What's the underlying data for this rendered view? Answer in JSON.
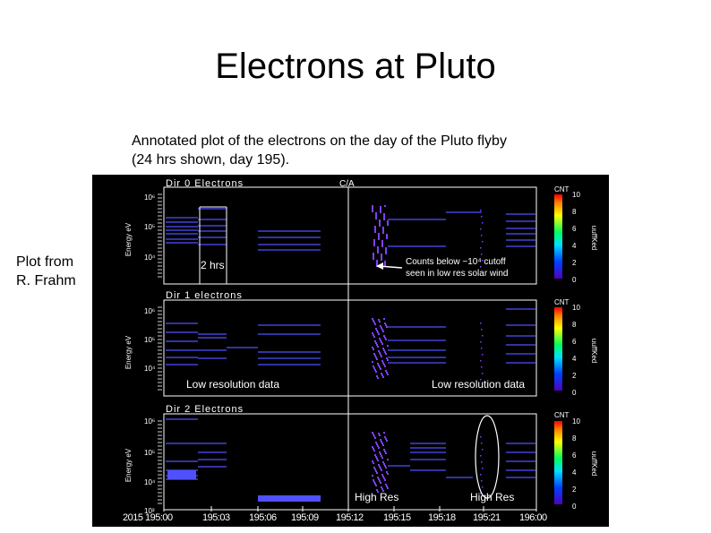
{
  "slide": {
    "title": "Electrons at Pluto",
    "subtitle_line1": "Annotated plot of the electrons on the day of the Pluto flyby",
    "subtitle_line2": "(24 hrs shown, day 195).",
    "credit_line1": "Plot from",
    "credit_line2": "R. Frahm"
  },
  "figure": {
    "panel_titles": [
      "Dir 0 Electrons",
      "Dir 1 electrons",
      "Dir 2 Electrons"
    ],
    "ylabel": "Energy eV",
    "colorbar_label": "CNT",
    "colorbar_side": "uuffKed",
    "colorbar_ticks": [
      "10",
      "8",
      "6",
      "4",
      "2",
      "0"
    ],
    "ca_label": "C/A",
    "energy_ticks": [
      "10⁶",
      "10⁵",
      "10⁴"
    ],
    "panel3_bottom_tick": "10³",
    "x_ticks": [
      "2015 195:00",
      "195:03",
      "195:06",
      "195:09",
      "195:12",
      "195:15",
      "195:18",
      "195:21",
      "196:00"
    ],
    "annotations": {
      "two_hrs": "2 hrs",
      "counts_line1": "Counts below ~10⁴ cutoff",
      "counts_line2": "seen in low res solar wind",
      "low_res_left": "Low resolution data",
      "low_res_right": "Low resolution data",
      "high_res_left": "High Res",
      "high_res_right": "High Res"
    },
    "colors": {
      "trace": "#5050ff",
      "burst": "#8040ff",
      "frame": "#ffffff",
      "background": "#000000"
    }
  }
}
